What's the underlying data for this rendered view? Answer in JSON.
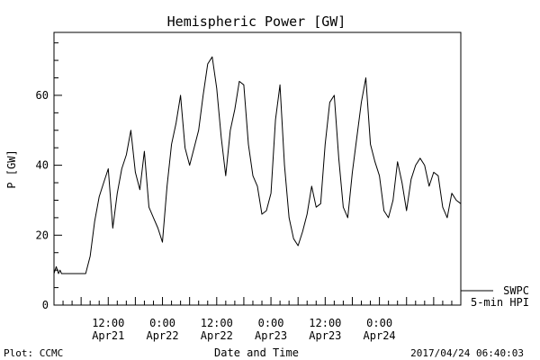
{
  "chart_data": {
    "type": "line",
    "title": "Hemispheric Power [GW]",
    "ylabel": "P [GW]",
    "xlabel": "Date and Time",
    "ylim": [
      0,
      78
    ],
    "xlim": [
      "2017-04-21T00:00",
      "2017-04-24T18:00"
    ],
    "y_ticks": [
      0,
      20,
      40,
      60
    ],
    "x_ticks": [
      {
        "at": "2017-04-21T12:00",
        "time": "12:00",
        "date": "Apr21"
      },
      {
        "at": "2017-04-22T00:00",
        "time": "0:00",
        "date": "Apr22"
      },
      {
        "at": "2017-04-22T12:00",
        "time": "12:00",
        "date": "Apr22"
      },
      {
        "at": "2017-04-23T00:00",
        "time": "0:00",
        "date": "Apr23"
      },
      {
        "at": "2017-04-23T12:00",
        "time": "12:00",
        "date": "Apr23"
      },
      {
        "at": "2017-04-24T00:00",
        "time": "0:00",
        "date": "Apr24"
      }
    ],
    "grid": false,
    "legend": {
      "placement": "right",
      "entries": [
        {
          "label": "SWPC",
          "style": "solid"
        },
        {
          "label": "5-min HPI",
          "style": "none"
        }
      ]
    },
    "series": [
      {
        "name": "SWPC",
        "color": "#000000",
        "x": [
          "2017-04-21T00:00",
          "2017-04-21T00:30",
          "2017-04-21T01:00",
          "2017-04-21T01:20",
          "2017-04-21T01:40",
          "2017-04-21T02:00",
          "2017-04-21T03:00",
          "2017-04-21T04:00",
          "2017-04-21T05:00",
          "2017-04-21T06:00",
          "2017-04-21T07:00",
          "2017-04-21T08:00",
          "2017-04-21T09:00",
          "2017-04-21T10:00",
          "2017-04-21T11:00",
          "2017-04-21T12:00",
          "2017-04-21T13:00",
          "2017-04-21T14:00",
          "2017-04-21T15:00",
          "2017-04-21T16:00",
          "2017-04-21T17:00",
          "2017-04-21T18:00",
          "2017-04-21T19:00",
          "2017-04-21T20:00",
          "2017-04-21T21:00",
          "2017-04-21T22:00",
          "2017-04-21T23:00",
          "2017-04-22T00:00",
          "2017-04-22T01:00",
          "2017-04-22T02:00",
          "2017-04-22T03:00",
          "2017-04-22T04:00",
          "2017-04-22T05:00",
          "2017-04-22T06:00",
          "2017-04-22T07:00",
          "2017-04-22T08:00",
          "2017-04-22T09:00",
          "2017-04-22T10:00",
          "2017-04-22T11:00",
          "2017-04-22T12:00",
          "2017-04-22T13:00",
          "2017-04-22T14:00",
          "2017-04-22T15:00",
          "2017-04-22T16:00",
          "2017-04-22T17:00",
          "2017-04-22T18:00",
          "2017-04-22T19:00",
          "2017-04-22T20:00",
          "2017-04-22T21:00",
          "2017-04-22T22:00",
          "2017-04-22T23:00",
          "2017-04-23T00:00",
          "2017-04-23T01:00",
          "2017-04-23T02:00",
          "2017-04-23T03:00",
          "2017-04-23T04:00",
          "2017-04-23T05:00",
          "2017-04-23T06:00",
          "2017-04-23T07:00",
          "2017-04-23T08:00",
          "2017-04-23T09:00",
          "2017-04-23T10:00",
          "2017-04-23T11:00",
          "2017-04-23T12:00",
          "2017-04-23T13:00",
          "2017-04-23T14:00",
          "2017-04-23T15:00",
          "2017-04-23T16:00",
          "2017-04-23T17:00",
          "2017-04-23T18:00",
          "2017-04-23T19:00",
          "2017-04-23T20:00",
          "2017-04-23T21:00",
          "2017-04-23T22:00",
          "2017-04-23T23:00",
          "2017-04-24T00:00",
          "2017-04-24T01:00",
          "2017-04-24T02:00",
          "2017-04-24T03:00",
          "2017-04-24T04:00",
          "2017-04-24T05:00",
          "2017-04-24T06:00",
          "2017-04-24T07:00",
          "2017-04-24T08:00",
          "2017-04-24T09:00",
          "2017-04-24T10:00",
          "2017-04-24T11:00",
          "2017-04-24T12:00",
          "2017-04-24T13:00",
          "2017-04-24T14:00",
          "2017-04-24T15:00",
          "2017-04-24T16:00",
          "2017-04-24T17:00",
          "2017-04-24T18:00"
        ],
        "y": [
          9,
          11,
          9,
          10,
          9,
          9,
          9,
          9,
          9,
          9,
          9,
          14,
          24,
          31,
          35,
          39,
          22,
          32,
          39,
          43,
          50,
          38,
          33,
          44,
          28,
          25,
          22,
          18,
          34,
          46,
          52,
          60,
          45,
          40,
          45,
          50,
          60,
          69,
          71,
          62,
          48,
          37,
          50,
          56,
          64,
          63,
          46,
          37,
          34,
          26,
          27,
          32,
          53,
          63,
          40,
          25,
          19,
          17,
          21,
          26,
          34,
          28,
          29,
          46,
          58,
          60,
          42,
          28,
          25,
          38,
          48,
          58,
          65,
          46,
          41,
          37,
          27,
          25,
          30,
          41,
          35,
          27,
          36,
          40,
          42,
          40,
          34,
          38,
          37,
          28,
          25,
          32,
          30,
          29
        ]
      }
    ]
  },
  "footer": {
    "plot_credit": "Plot: CCMC",
    "timestamp": "2017/04/24 06:40:03"
  }
}
